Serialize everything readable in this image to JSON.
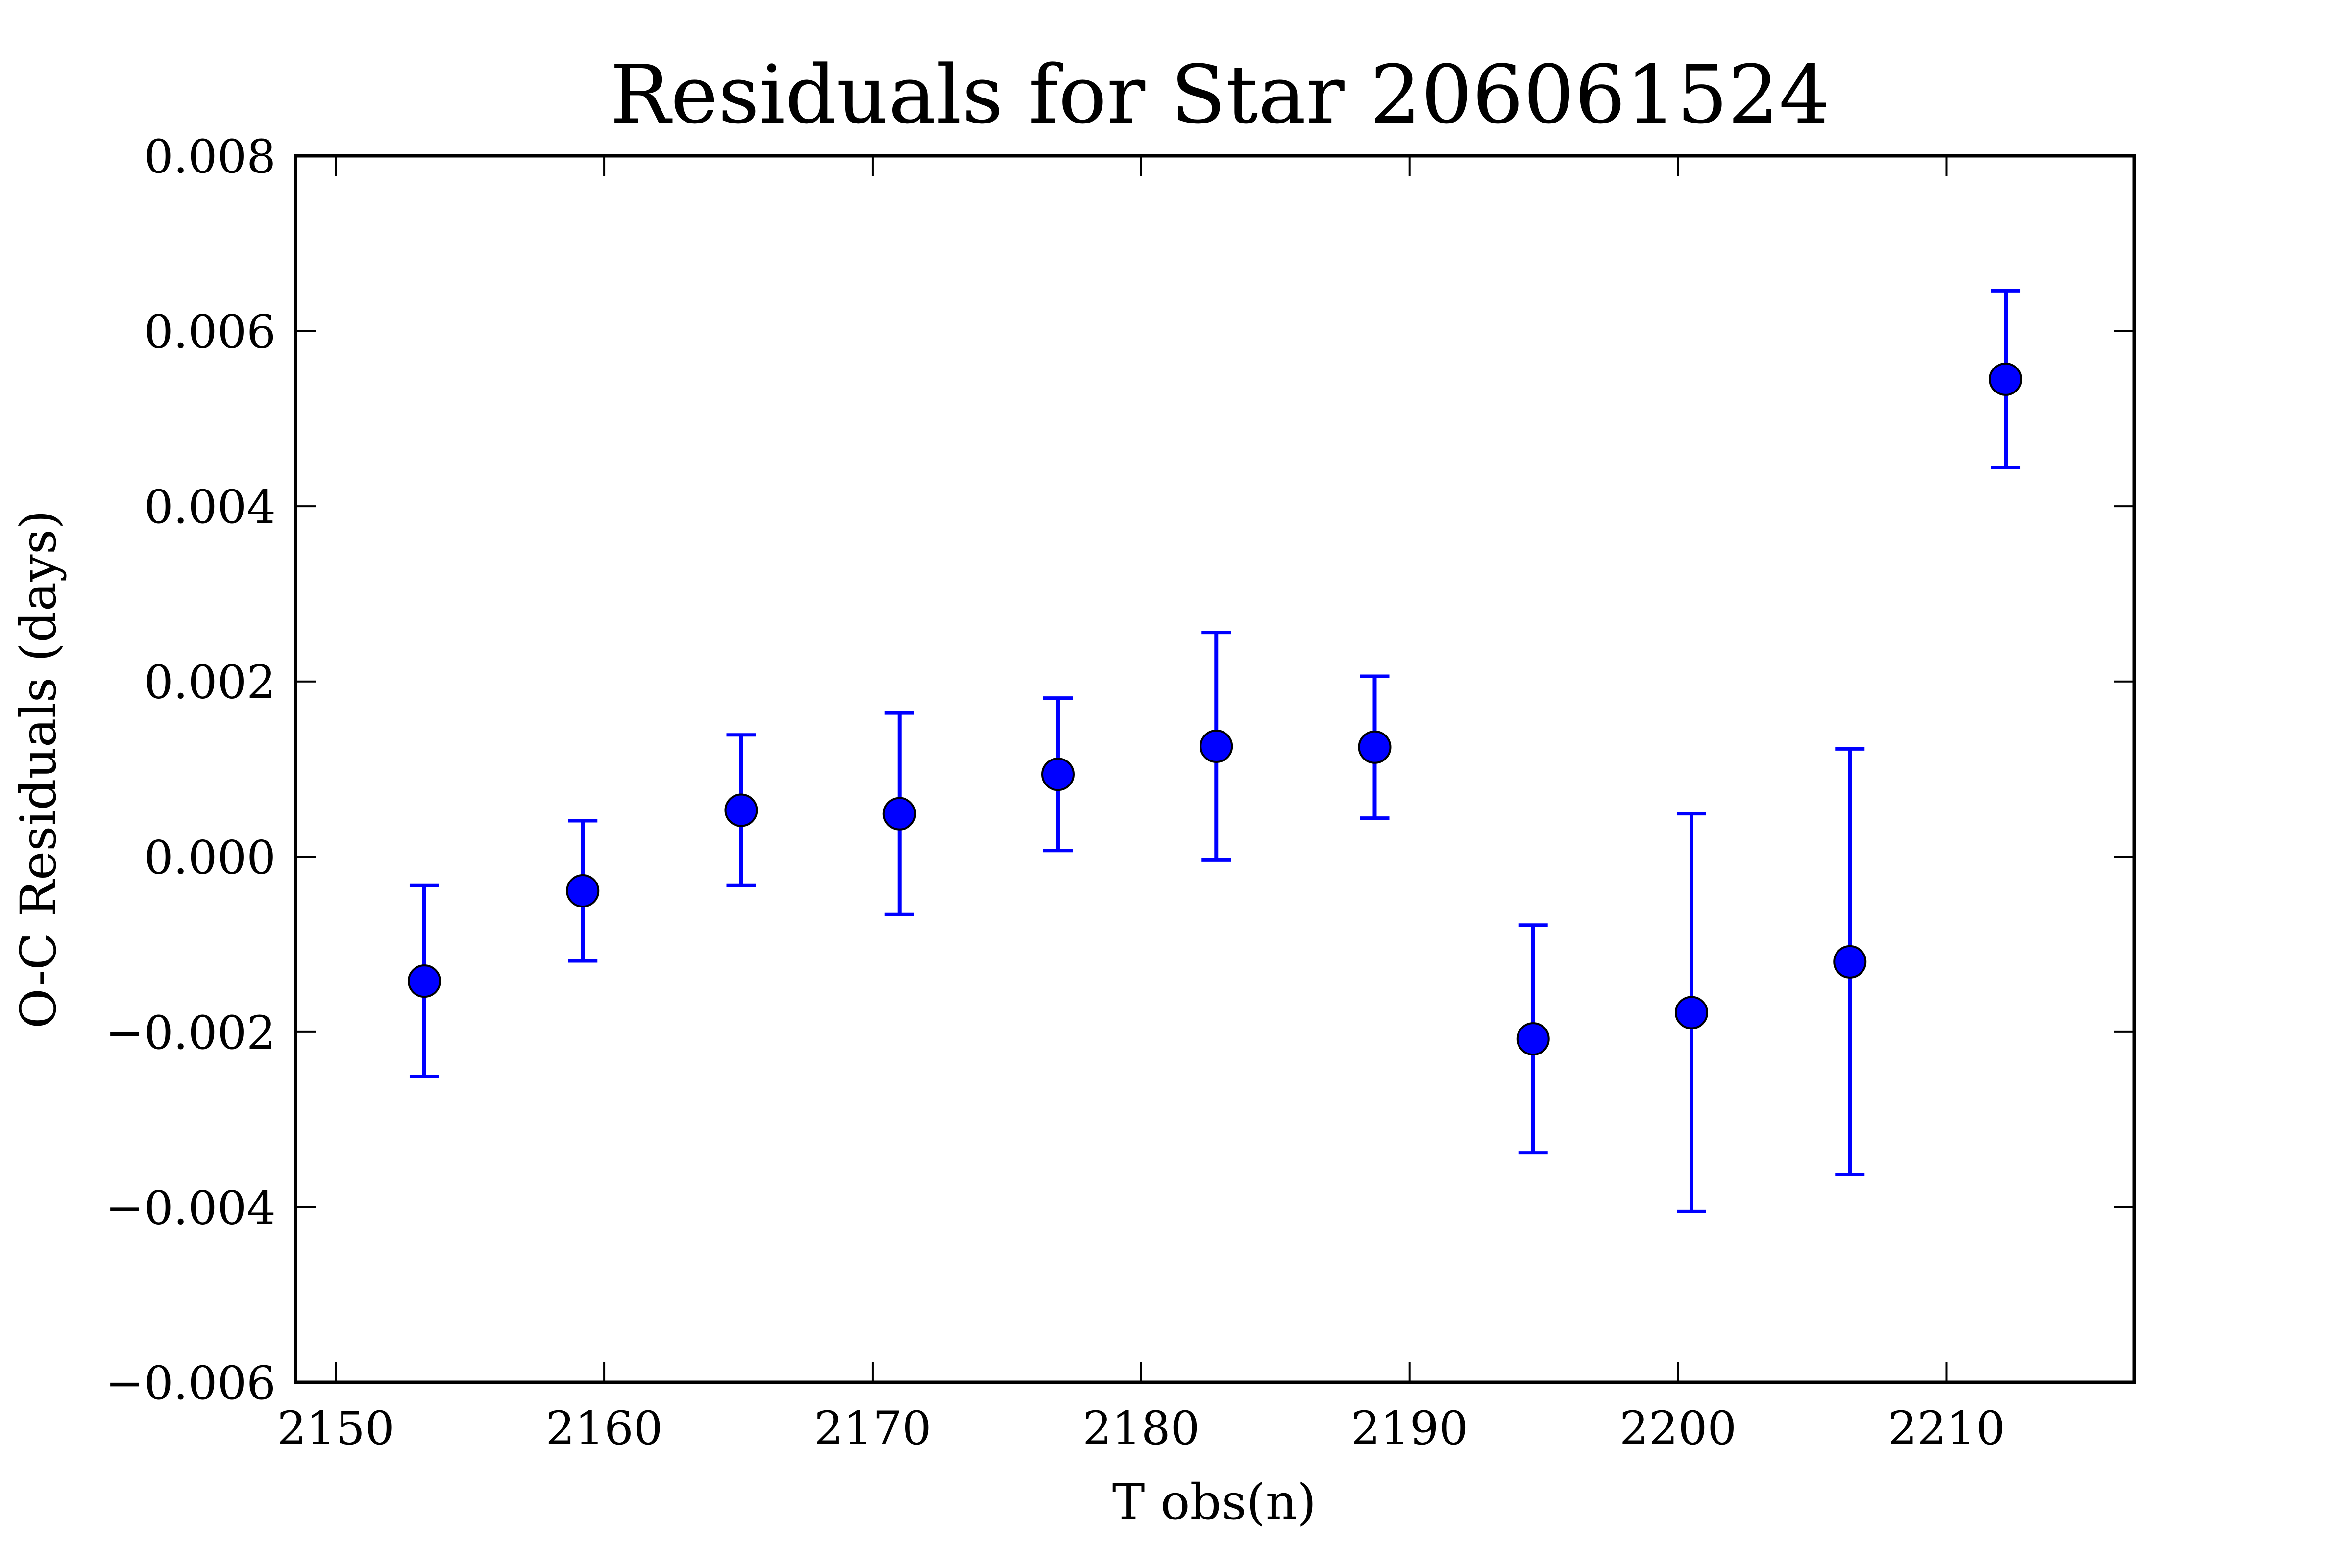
{
  "chart_data": {
    "type": "scatter",
    "title": "Residuals for Star 206061524",
    "xlabel": "T obs(n)",
    "ylabel": "O-C Residuals (days)",
    "xlim": [
      2148.5,
      2217
    ],
    "ylim": [
      -0.006,
      0.008
    ],
    "x_ticks": [
      2150,
      2160,
      2170,
      2180,
      2190,
      2200,
      2210
    ],
    "y_ticks": [
      -0.006,
      -0.004,
      -0.002,
      0.0,
      0.002,
      0.004,
      0.006,
      0.008
    ],
    "x_tick_labels": [
      "2150",
      "2160",
      "2170",
      "2180",
      "2190",
      "2200",
      "2210"
    ],
    "y_tick_labels": [
      "−0.006",
      "−0.004",
      "−0.002",
      "0.000",
      "0.002",
      "0.004",
      "0.006",
      "0.008"
    ],
    "grid": false,
    "colors": {
      "marker": "#0000ff",
      "errorbar": "#0000ff",
      "marker_edge": "#000000",
      "axes": "#000000"
    },
    "x": [
      2153.3,
      2159.2,
      2165.1,
      2171.0,
      2176.9,
      2182.8,
      2188.7,
      2194.6,
      2200.5,
      2206.4,
      2212.2
    ],
    "y": [
      -0.00142,
      -0.00039,
      0.00053,
      0.00049,
      0.00094,
      0.00126,
      0.00125,
      -0.00208,
      -0.00178,
      -0.0012,
      0.00545
    ],
    "yerr": [
      0.00109,
      0.0008,
      0.00086,
      0.00115,
      0.00087,
      0.0013,
      0.00081,
      0.0013,
      0.00227,
      0.00243,
      0.00101
    ]
  }
}
